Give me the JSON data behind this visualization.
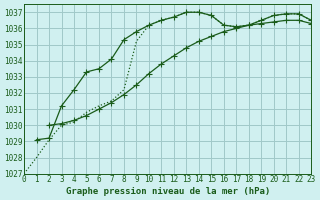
{
  "bg_color": "#d0f0f0",
  "grid_color": "#a0c8c8",
  "line_color": "#1a5c1a",
  "xlabel": "Graphe pression niveau de la mer (hPa)",
  "ylim": [
    1027,
    1037.5
  ],
  "xlim": [
    0,
    23
  ],
  "yticks": [
    1027,
    1028,
    1029,
    1030,
    1031,
    1032,
    1033,
    1034,
    1035,
    1036,
    1037
  ],
  "xticks": [
    0,
    1,
    2,
    3,
    4,
    5,
    6,
    7,
    8,
    9,
    10,
    11,
    12,
    13,
    14,
    15,
    16,
    17,
    18,
    19,
    20,
    21,
    22,
    23
  ],
  "line1_x": [
    0,
    1,
    2,
    3,
    4,
    5,
    6,
    7,
    8,
    9,
    10,
    11,
    12,
    13,
    14,
    15,
    16,
    17,
    18,
    19,
    20,
    21,
    22,
    23
  ],
  "line1_y": [
    1027.0,
    1028.0,
    1029.1,
    1030.0,
    1030.2,
    1030.8,
    1031.2,
    1031.5,
    1032.2,
    1035.2,
    1036.2,
    1036.5,
    1036.7,
    1037.0,
    1037.0,
    1036.8,
    1036.2,
    1036.1,
    1036.2,
    1036.5,
    1036.8,
    1036.9,
    1036.9,
    1036.5
  ],
  "line2_x": [
    1,
    2,
    3,
    4,
    5,
    6,
    7,
    8,
    9,
    10,
    11,
    12,
    13,
    14,
    15,
    16,
    17,
    18,
    19,
    20,
    21,
    22,
    23
  ],
  "line2_y": [
    1029.1,
    1029.2,
    1031.2,
    1032.2,
    1033.3,
    1033.5,
    1034.1,
    1035.3,
    1035.8,
    1036.2,
    1036.5,
    1036.7,
    1037.0,
    1037.0,
    1036.8,
    1036.2,
    1036.1,
    1036.2,
    1036.5,
    1036.8,
    1036.9,
    1036.9,
    1036.5
  ],
  "line3_x": [
    2,
    3,
    4,
    5,
    6,
    7,
    8,
    9,
    10,
    11,
    12,
    13,
    14,
    15,
    16,
    17,
    18,
    19,
    20,
    21,
    22,
    23
  ],
  "line3_y": [
    1030.0,
    1030.1,
    1030.3,
    1030.6,
    1031.0,
    1031.4,
    1031.9,
    1032.5,
    1033.2,
    1033.8,
    1034.3,
    1034.8,
    1035.2,
    1035.5,
    1035.8,
    1036.0,
    1036.2,
    1036.3,
    1036.4,
    1036.5,
    1036.5,
    1036.3
  ]
}
